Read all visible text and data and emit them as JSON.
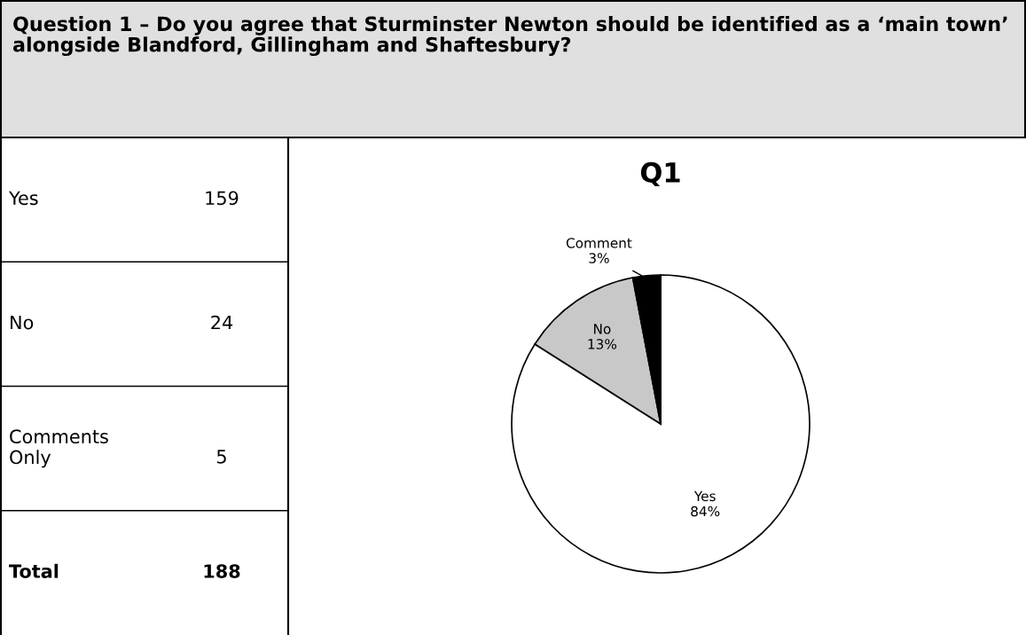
{
  "chart_data": [
    {
      "type": "other",
      "title": "Question 1 – Do you agree that Sturminster Newton should be identified as a ‘main town’ alongside Blandford, Gillingham and Shaftesbury?",
      "annotations": [
        "Yes",
        "159",
        "No",
        "24",
        "Comments\nOnly",
        "5",
        "Total",
        "188"
      ]
    },
    {
      "type": "pie",
      "title": "Q1",
      "categories": [
        "Yes",
        "No",
        "Comment"
      ],
      "values": [
        84,
        13,
        3
      ],
      "colors": [
        "#ffffff",
        "#c8c8c8",
        "#000000"
      ],
      "value_labels": [
        "84%",
        "13%",
        "3%"
      ]
    }
  ]
}
